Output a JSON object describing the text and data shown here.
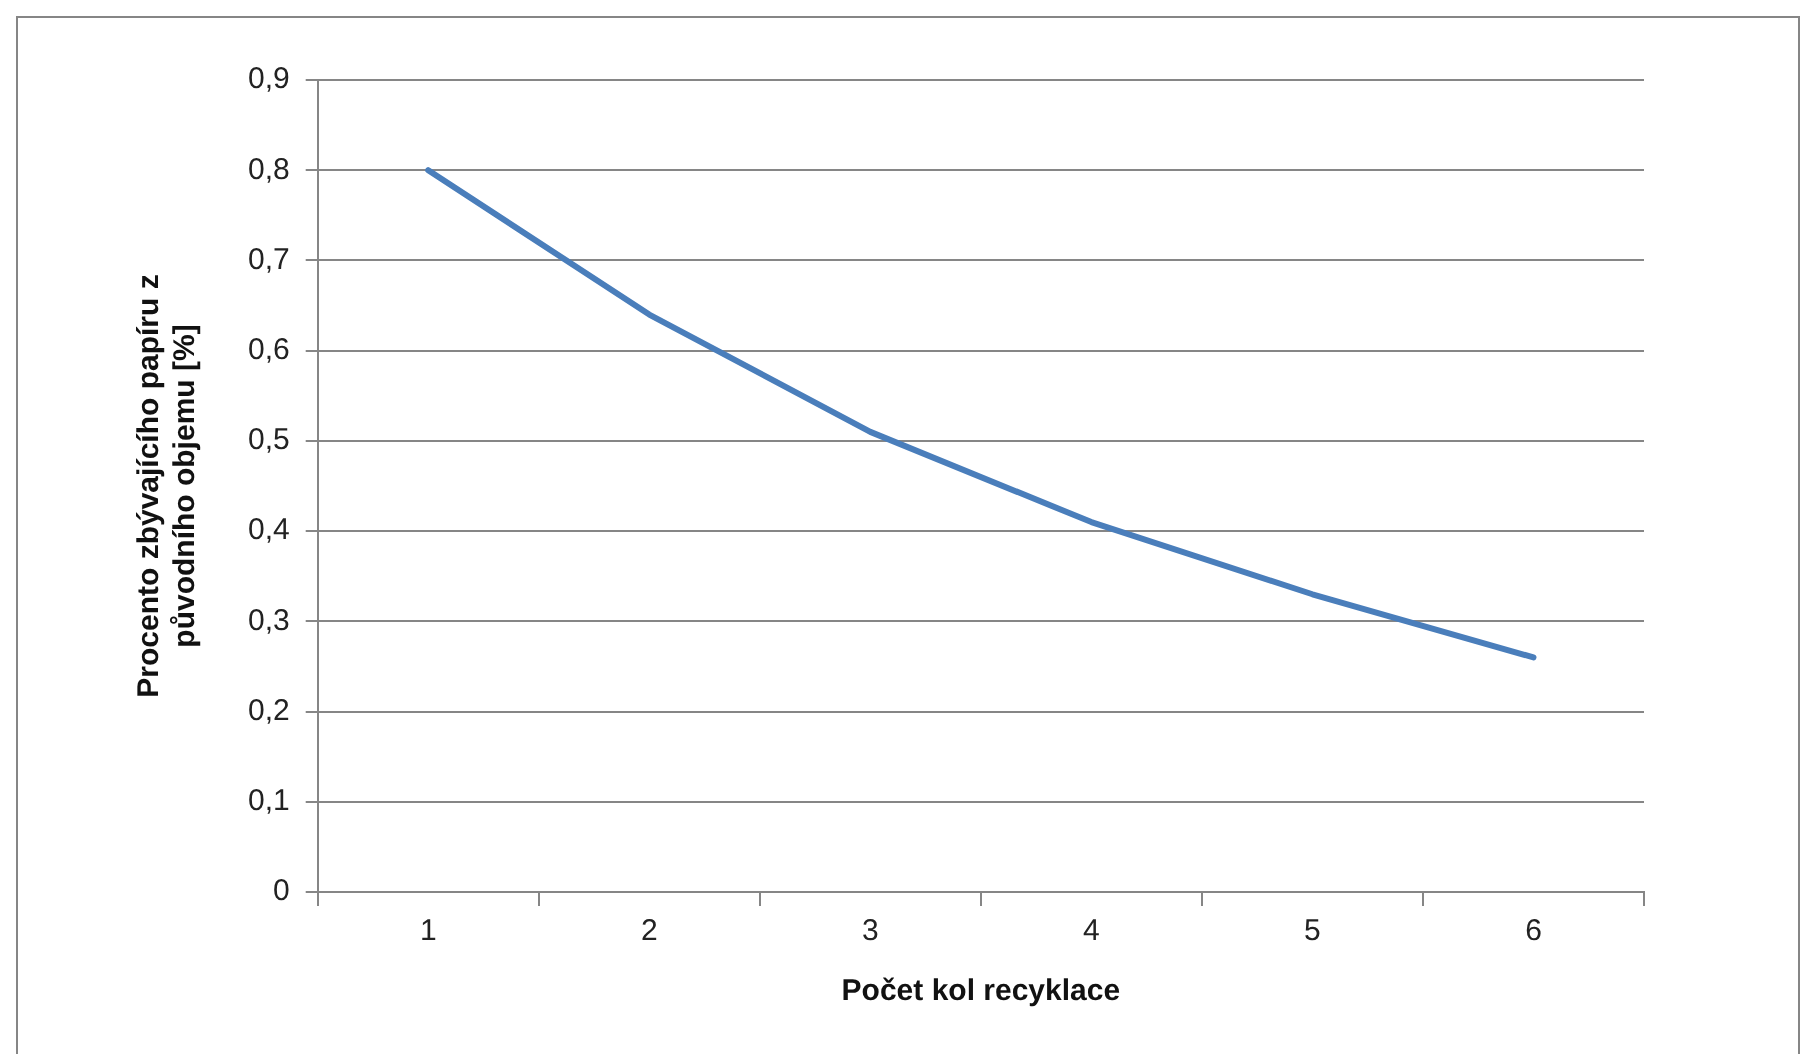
{
  "chart_data": {
    "type": "line",
    "xlabel": "Počet kol recyklace",
    "ylabel": "Procento zbývajícího papíru z původního objemu [%]",
    "categories": [
      "1",
      "2",
      "3",
      "4",
      "5",
      "6"
    ],
    "series": [
      {
        "color": "#4a7ebb",
        "values": [
          0.8,
          0.64,
          0.51,
          0.41,
          0.33,
          0.26
        ]
      }
    ],
    "ylim": [
      0,
      0.9
    ],
    "yticks": [
      0,
      {
        "value": 0.1,
        "label": "0,1"
      },
      {
        "value": 0.2,
        "label": "0,2"
      },
      {
        "value": 0.3,
        "label": "0,3"
      },
      {
        "value": 0.4,
        "label": "0,4"
      },
      {
        "value": 0.5,
        "label": "0,5"
      },
      {
        "value": 0.6,
        "label": "0,6"
      },
      {
        "value": 0.7,
        "label": "0,7"
      },
      {
        "value": 0.8,
        "label": "0,8"
      },
      {
        "value": 0.9,
        "label": "0,9"
      }
    ],
    "grid": "y",
    "legend": false,
    "marker": "none",
    "line_style": "solid"
  }
}
